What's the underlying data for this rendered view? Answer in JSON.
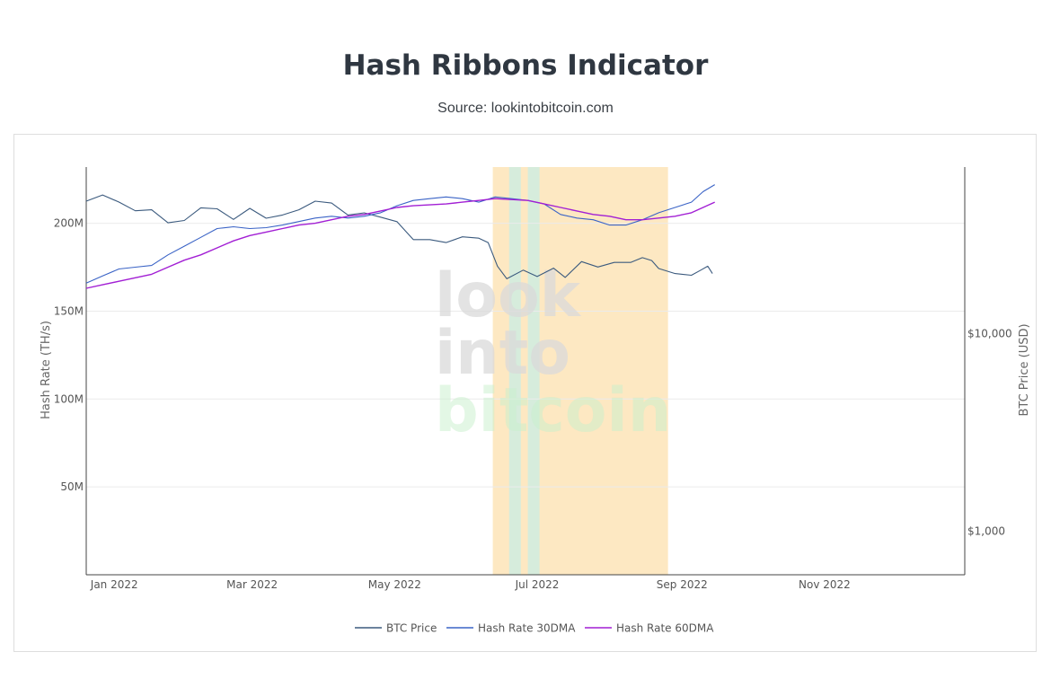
{
  "chart_data": {
    "type": "line",
    "title": "Hash Ribbons Indicator",
    "subtitle": "Source: lookintobitcoin.com",
    "watermark": [
      "look",
      "into",
      "bitcoin"
    ],
    "x_ticks": [
      "Jan 2022",
      "Mar 2022",
      "May 2022",
      "Jul 2022",
      "Sep 2022",
      "Nov 2022"
    ],
    "x_range": [
      "2021-12-20",
      "2022-12-31"
    ],
    "y_left": {
      "label": "Hash Rate (TH/s)",
      "ticks": [
        "50M",
        "100M",
        "150M",
        "200M"
      ],
      "tick_values": [
        50000000,
        100000000,
        150000000,
        200000000
      ],
      "range": [
        0,
        232000000
      ]
    },
    "y_right": {
      "label": "BTC Price (USD)",
      "scale": "log",
      "ticks": [
        "$1,000",
        "$10,000"
      ],
      "tick_values": [
        1000,
        10000
      ],
      "range": [
        600,
        70000
      ]
    },
    "capitulation_band": {
      "start": "2022-06-12",
      "end": "2022-08-26",
      "color": "#fde8c2"
    },
    "recovery_bands": [
      {
        "start": "2022-06-19",
        "end": "2022-06-24",
        "color": "#d6ecdc"
      },
      {
        "start": "2022-06-27",
        "end": "2022-07-02",
        "color": "#d6ecdc"
      }
    ],
    "series": [
      {
        "name": "BTC Price",
        "color": "#3b5a7e",
        "axis": "right",
        "points": [
          [
            "2021-12-20",
            47000
          ],
          [
            "2021-12-27",
            50500
          ],
          [
            "2022-01-03",
            46500
          ],
          [
            "2022-01-10",
            42000
          ],
          [
            "2022-01-17",
            42500
          ],
          [
            "2022-01-24",
            36500
          ],
          [
            "2022-01-31",
            37500
          ],
          [
            "2022-02-07",
            43500
          ],
          [
            "2022-02-14",
            43000
          ],
          [
            "2022-02-21",
            38000
          ],
          [
            "2022-02-28",
            43200
          ],
          [
            "2022-03-07",
            38500
          ],
          [
            "2022-03-14",
            40000
          ],
          [
            "2022-03-21",
            42500
          ],
          [
            "2022-03-28",
            47000
          ],
          [
            "2022-04-04",
            46000
          ],
          [
            "2022-04-11",
            40000
          ],
          [
            "2022-04-18",
            41000
          ],
          [
            "2022-04-25",
            39000
          ],
          [
            "2022-05-02",
            37000
          ],
          [
            "2022-05-09",
            30000
          ],
          [
            "2022-05-16",
            30000
          ],
          [
            "2022-05-23",
            29000
          ],
          [
            "2022-05-30",
            31000
          ],
          [
            "2022-06-06",
            30500
          ],
          [
            "2022-06-10",
            29000
          ],
          [
            "2022-06-14",
            22000
          ],
          [
            "2022-06-18",
            19000
          ],
          [
            "2022-06-25",
            21000
          ],
          [
            "2022-07-01",
            19500
          ],
          [
            "2022-07-08",
            21500
          ],
          [
            "2022-07-13",
            19300
          ],
          [
            "2022-07-20",
            23200
          ],
          [
            "2022-07-27",
            21800
          ],
          [
            "2022-08-03",
            23000
          ],
          [
            "2022-08-10",
            23000
          ],
          [
            "2022-08-15",
            24300
          ],
          [
            "2022-08-19",
            23500
          ],
          [
            "2022-08-22",
            21400
          ],
          [
            "2022-08-29",
            20200
          ],
          [
            "2022-09-05",
            19800
          ],
          [
            "2022-09-09",
            21000
          ],
          [
            "2022-09-12",
            22000
          ],
          [
            "2022-09-14",
            20200
          ]
        ]
      },
      {
        "name": "Hash Rate 30DMA",
        "color": "#3a63c6",
        "axis": "left",
        "points": [
          [
            "2021-12-20",
            166000000
          ],
          [
            "2021-12-27",
            170000000
          ],
          [
            "2022-01-03",
            174000000
          ],
          [
            "2022-01-10",
            175000000
          ],
          [
            "2022-01-17",
            176000000
          ],
          [
            "2022-01-24",
            182000000
          ],
          [
            "2022-01-31",
            187000000
          ],
          [
            "2022-02-07",
            192000000
          ],
          [
            "2022-02-14",
            197000000
          ],
          [
            "2022-02-21",
            198000000
          ],
          [
            "2022-02-28",
            197000000
          ],
          [
            "2022-03-07",
            197500000
          ],
          [
            "2022-03-14",
            199000000
          ],
          [
            "2022-03-21",
            201000000
          ],
          [
            "2022-03-28",
            203000000
          ],
          [
            "2022-04-04",
            204000000
          ],
          [
            "2022-04-11",
            203000000
          ],
          [
            "2022-04-18",
            204000000
          ],
          [
            "2022-04-25",
            206000000
          ],
          [
            "2022-05-02",
            210000000
          ],
          [
            "2022-05-09",
            213000000
          ],
          [
            "2022-05-16",
            214000000
          ],
          [
            "2022-05-23",
            215000000
          ],
          [
            "2022-05-30",
            214000000
          ],
          [
            "2022-06-06",
            212000000
          ],
          [
            "2022-06-13",
            215000000
          ],
          [
            "2022-06-20",
            214000000
          ],
          [
            "2022-06-27",
            213000000
          ],
          [
            "2022-07-04",
            211000000
          ],
          [
            "2022-07-11",
            205000000
          ],
          [
            "2022-07-18",
            203000000
          ],
          [
            "2022-07-25",
            202000000
          ],
          [
            "2022-08-01",
            199000000
          ],
          [
            "2022-08-08",
            199000000
          ],
          [
            "2022-08-15",
            202000000
          ],
          [
            "2022-08-22",
            206000000
          ],
          [
            "2022-08-29",
            209000000
          ],
          [
            "2022-09-05",
            212000000
          ],
          [
            "2022-09-10",
            218000000
          ],
          [
            "2022-09-15",
            222000000
          ]
        ]
      },
      {
        "name": "Hash Rate 60DMA",
        "color": "#a21fd4",
        "axis": "left",
        "points": [
          [
            "2021-12-20",
            163000000
          ],
          [
            "2021-12-27",
            165000000
          ],
          [
            "2022-01-03",
            167000000
          ],
          [
            "2022-01-10",
            169000000
          ],
          [
            "2022-01-17",
            171000000
          ],
          [
            "2022-01-24",
            175000000
          ],
          [
            "2022-01-31",
            179000000
          ],
          [
            "2022-02-07",
            182000000
          ],
          [
            "2022-02-14",
            186000000
          ],
          [
            "2022-02-21",
            190000000
          ],
          [
            "2022-02-28",
            193000000
          ],
          [
            "2022-03-07",
            195000000
          ],
          [
            "2022-03-14",
            197000000
          ],
          [
            "2022-03-21",
            199000000
          ],
          [
            "2022-03-28",
            200000000
          ],
          [
            "2022-04-04",
            202000000
          ],
          [
            "2022-04-11",
            204000000
          ],
          [
            "2022-04-18",
            205000000
          ],
          [
            "2022-04-25",
            207000000
          ],
          [
            "2022-05-02",
            209000000
          ],
          [
            "2022-05-09",
            210000000
          ],
          [
            "2022-05-16",
            210500000
          ],
          [
            "2022-05-23",
            211000000
          ],
          [
            "2022-05-30",
            212000000
          ],
          [
            "2022-06-06",
            213000000
          ],
          [
            "2022-06-13",
            214000000
          ],
          [
            "2022-06-20",
            213500000
          ],
          [
            "2022-06-27",
            213000000
          ],
          [
            "2022-07-04",
            211000000
          ],
          [
            "2022-07-11",
            209000000
          ],
          [
            "2022-07-18",
            207000000
          ],
          [
            "2022-07-25",
            205000000
          ],
          [
            "2022-08-01",
            204000000
          ],
          [
            "2022-08-08",
            202000000
          ],
          [
            "2022-08-15",
            202000000
          ],
          [
            "2022-08-22",
            203000000
          ],
          [
            "2022-08-29",
            204000000
          ],
          [
            "2022-09-05",
            206000000
          ],
          [
            "2022-09-10",
            209000000
          ],
          [
            "2022-09-15",
            212000000
          ]
        ]
      }
    ]
  }
}
